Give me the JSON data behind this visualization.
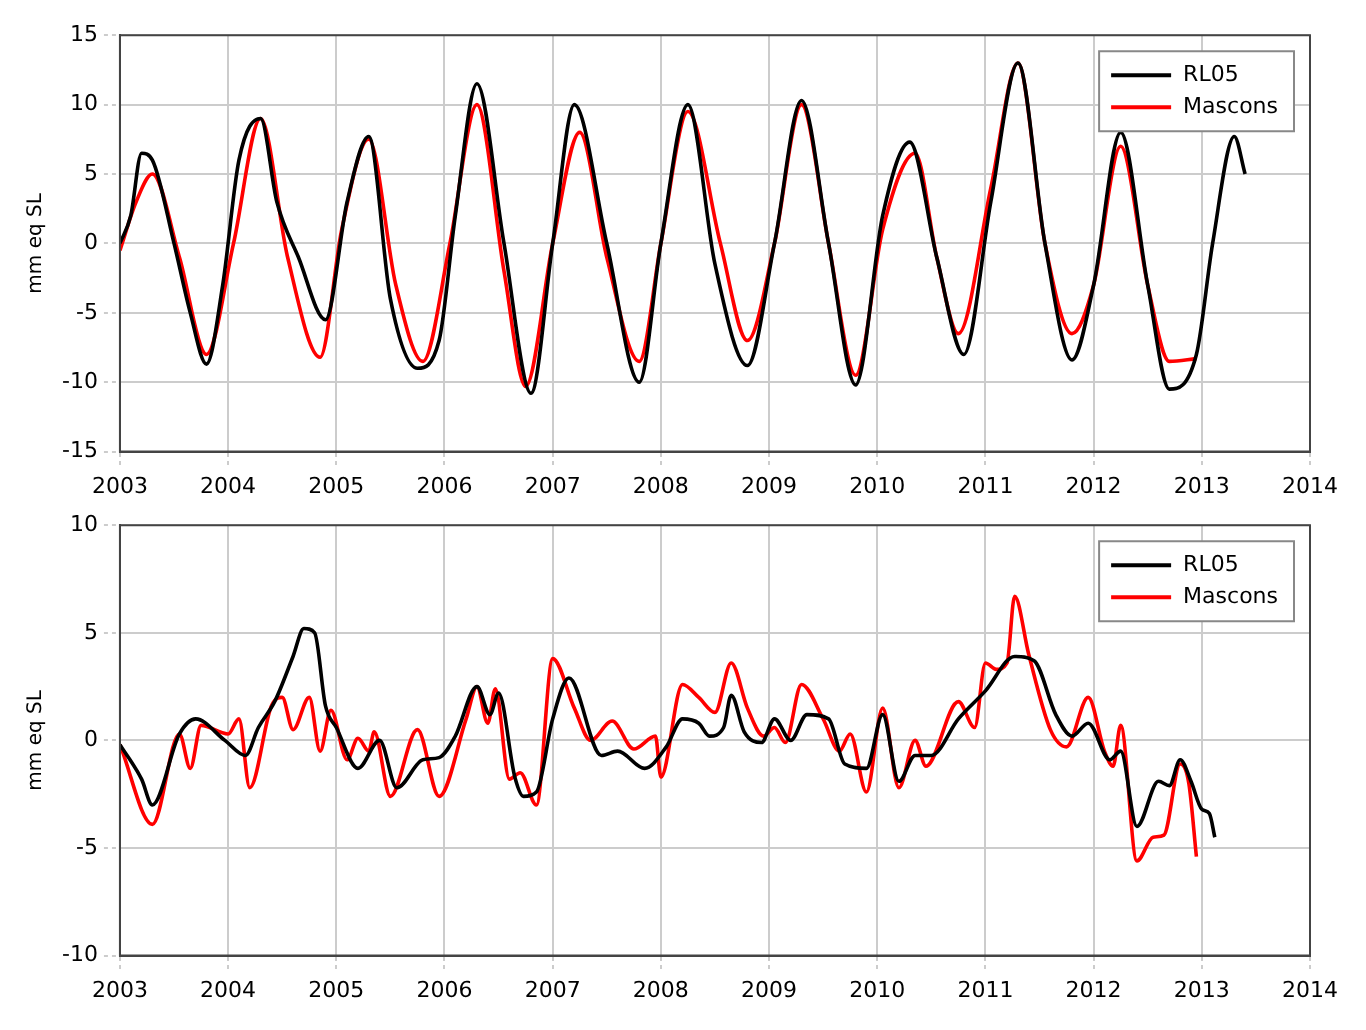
{
  "chart_data": [
    {
      "type": "line",
      "ylabel": "mm eq SL",
      "xlim": [
        2003,
        2014
      ],
      "xticks": [
        2003,
        2004,
        2005,
        2006,
        2007,
        2008,
        2009,
        2010,
        2011,
        2012,
        2013,
        2014
      ],
      "ylim": [
        -15,
        15
      ],
      "yticks": [
        -15,
        -10,
        -5,
        0,
        5,
        10,
        15
      ],
      "grid": true,
      "legend": "top right",
      "marker": "none",
      "line_style": "solid",
      "series": [
        {
          "name": "RL05",
          "color": "#000000",
          "x": [
            2003.0,
            2003.1,
            2003.2,
            2003.3,
            2003.5,
            2003.65,
            2003.8,
            2003.95,
            2004.1,
            2004.3,
            2004.45,
            2004.65,
            2004.9,
            2005.1,
            2005.3,
            2005.5,
            2005.75,
            2005.95,
            2006.1,
            2006.3,
            2006.55,
            2006.8,
            2007.0,
            2007.2,
            2007.5,
            2007.8,
            2008.0,
            2008.25,
            2008.5,
            2008.8,
            2009.05,
            2009.3,
            2009.55,
            2009.8,
            2010.05,
            2010.3,
            2010.55,
            2010.8,
            2011.05,
            2011.3,
            2011.55,
            2011.8,
            2012.0,
            2012.25,
            2012.5,
            2012.7,
            2012.95,
            2013.1,
            2013.3,
            2013.4
          ],
          "values": [
            0,
            2,
            6.5,
            6,
            0,
            -5,
            -8.7,
            -3,
            6,
            9,
            3,
            -1,
            -5.5,
            3,
            7.7,
            -4,
            -9,
            -7,
            2,
            11.5,
            0,
            -10.8,
            0,
            10,
            0,
            -10,
            0,
            10,
            -1.5,
            -8.8,
            0,
            10.3,
            0,
            -10.2,
            2,
            7.3,
            -1,
            -8,
            3,
            13,
            0,
            -8.4,
            -3,
            8,
            -3,
            -10.5,
            -8,
            0,
            7.7,
            5
          ]
        },
        {
          "name": "Mascons",
          "color": "#ff0000",
          "x": [
            2003.0,
            2003.15,
            2003.3,
            2003.55,
            2003.8,
            2004.05,
            2004.3,
            2004.55,
            2004.85,
            2005.05,
            2005.3,
            2005.55,
            2005.8,
            2006.05,
            2006.3,
            2006.55,
            2006.75,
            2007.0,
            2007.25,
            2007.5,
            2007.8,
            2008.0,
            2008.25,
            2008.55,
            2008.8,
            2009.05,
            2009.3,
            2009.55,
            2009.8,
            2010.05,
            2010.35,
            2010.55,
            2010.75,
            2011.05,
            2011.3,
            2011.55,
            2011.8,
            2012.0,
            2012.25,
            2012.5,
            2012.7,
            2012.95
          ],
          "values": [
            -0.5,
            3,
            5,
            -1,
            -8,
            0,
            9,
            -1,
            -8.2,
            1,
            7.5,
            -3,
            -8.5,
            0,
            10,
            -2,
            -10.3,
            0,
            8,
            -1,
            -8.5,
            0,
            9.5,
            0,
            -7,
            0,
            10,
            0,
            -9.5,
            1,
            6.5,
            -1,
            -6.5,
            4,
            13,
            0,
            -6.5,
            -3,
            7,
            -3,
            -8.5,
            -8.3
          ]
        }
      ]
    },
    {
      "type": "line",
      "ylabel": "mm eq SL",
      "xlim": [
        2003,
        2014
      ],
      "xticks": [
        2003,
        2004,
        2005,
        2006,
        2007,
        2008,
        2009,
        2010,
        2011,
        2012,
        2013,
        2014
      ],
      "ylim": [
        -10,
        10
      ],
      "yticks": [
        -10,
        -5,
        0,
        5,
        10
      ],
      "grid": true,
      "legend": "top right",
      "marker": "none",
      "line_style": "solid",
      "series": [
        {
          "name": "RL05",
          "color": "#000000",
          "x": [
            2003.0,
            2003.2,
            2003.3,
            2003.55,
            2003.7,
            2003.97,
            2004.16,
            2004.28,
            2004.43,
            2004.6,
            2004.7,
            2004.8,
            2004.9,
            2005.0,
            2005.2,
            2005.4,
            2005.56,
            2005.8,
            2005.95,
            2006.1,
            2006.3,
            2006.42,
            2006.5,
            2006.65,
            2006.73,
            2006.85,
            2007.0,
            2007.15,
            2007.45,
            2007.6,
            2007.85,
            2008.05,
            2008.2,
            2008.35,
            2008.45,
            2008.58,
            2008.65,
            2008.77,
            2008.93,
            2009.05,
            2009.2,
            2009.35,
            2009.55,
            2009.7,
            2009.9,
            2010.05,
            2010.2,
            2010.35,
            2010.5,
            2010.75,
            2011.0,
            2011.27,
            2011.45,
            2011.65,
            2011.8,
            2011.95,
            2012.15,
            2012.25,
            2012.4,
            2012.6,
            2012.7,
            2012.8,
            2012.9,
            2013.0,
            2013.07,
            2013.12
          ],
          "values": [
            -0.2,
            -1.8,
            -3,
            0.3,
            1,
            0,
            -0.7,
            0.6,
            1.8,
            3.9,
            5.2,
            5,
            1.6,
            0.6,
            -1.3,
            0,
            -2.2,
            -0.9,
            -0.8,
            0.2,
            2.5,
            1.2,
            2.2,
            -1.7,
            -2.6,
            -2.4,
            1,
            2.9,
            -0.7,
            -0.5,
            -1.3,
            -0.3,
            1,
            0.8,
            0.2,
            0.6,
            2.1,
            0.4,
            -0.1,
            1,
            0,
            1.2,
            1,
            -1.1,
            -1.3,
            1.2,
            -1.9,
            -0.7,
            -0.7,
            1,
            2.3,
            3.9,
            3.7,
            1.2,
            0.2,
            0.8,
            -0.9,
            -0.5,
            -4,
            -1.9,
            -2.1,
            -0.9,
            -1.9,
            -3.2,
            -3.4,
            -4.5
          ]
        },
        {
          "name": "Mascons",
          "color": "#ff0000",
          "x": [
            2003.0,
            2003.3,
            2003.55,
            2003.65,
            2003.75,
            2004.0,
            2004.1,
            2004.2,
            2004.4,
            2004.5,
            2004.6,
            2004.75,
            2004.85,
            2004.95,
            2005.1,
            2005.2,
            2005.3,
            2005.35,
            2005.5,
            2005.75,
            2005.95,
            2006.2,
            2006.3,
            2006.4,
            2006.47,
            2006.6,
            2006.7,
            2006.85,
            2007.0,
            2007.2,
            2007.35,
            2007.55,
            2007.75,
            2007.95,
            2008.0,
            2008.2,
            2008.35,
            2008.5,
            2008.65,
            2008.8,
            2008.95,
            2009.05,
            2009.15,
            2009.3,
            2009.5,
            2009.65,
            2009.75,
            2009.9,
            2010.05,
            2010.2,
            2010.35,
            2010.45,
            2010.75,
            2010.9,
            2011.0,
            2011.1,
            2011.2,
            2011.27,
            2011.4,
            2011.6,
            2011.75,
            2011.95,
            2012.1,
            2012.18,
            2012.25,
            2012.4,
            2012.55,
            2012.65,
            2012.8,
            2012.88,
            2012.95
          ],
          "values": [
            -0.2,
            -3.9,
            0.3,
            -1.3,
            0.7,
            0.3,
            1,
            -2.2,
            1.6,
            2,
            0.5,
            2,
            -0.5,
            1.4,
            -0.9,
            0.1,
            -0.5,
            0.4,
            -2.6,
            0.5,
            -2.6,
            1,
            2.5,
            0.8,
            2.4,
            -1.8,
            -1.5,
            -3,
            3.8,
            1.5,
            0,
            0.9,
            -0.4,
            0.2,
            -1.7,
            2.6,
            2,
            1.3,
            3.6,
            1.5,
            0.2,
            0.6,
            -0.1,
            2.6,
            1,
            -0.5,
            0.3,
            -2.4,
            1.5,
            -2.2,
            0,
            -1.2,
            1.8,
            0.6,
            3.6,
            3.3,
            3.6,
            6.7,
            4,
            0.5,
            -0.3,
            2,
            -0.5,
            -1.2,
            0.7,
            -5.6,
            -4.5,
            -4.4,
            -1.1,
            -2,
            -5.4
          ]
        }
      ]
    }
  ]
}
